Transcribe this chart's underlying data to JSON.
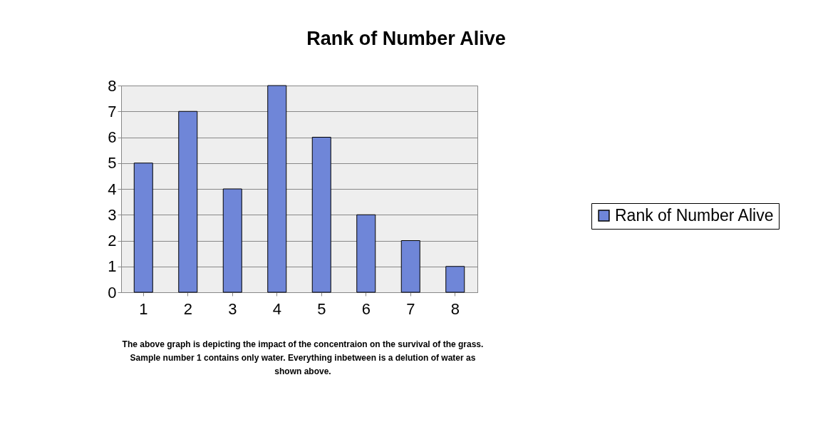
{
  "chart_data": {
    "type": "bar",
    "title": "Rank of Number Alive",
    "categories": [
      "1",
      "2",
      "3",
      "4",
      "5",
      "6",
      "7",
      "8"
    ],
    "series": [
      {
        "name": "Rank of Number Alive",
        "color": "#6f86d8",
        "values": [
          5,
          7,
          4,
          8,
          6,
          3,
          2,
          1
        ]
      }
    ],
    "ylim": [
      0,
      8
    ],
    "yticks": [
      0,
      1,
      2,
      3,
      4,
      5,
      6,
      7,
      8
    ],
    "grid": "y",
    "legend": "right",
    "annotations": [
      "The above graph is depicting the impact of the concentraion on the survival of the grass.  Sample number 1 contains only water.  Everything inbetween is a delution of water as shown above."
    ]
  }
}
